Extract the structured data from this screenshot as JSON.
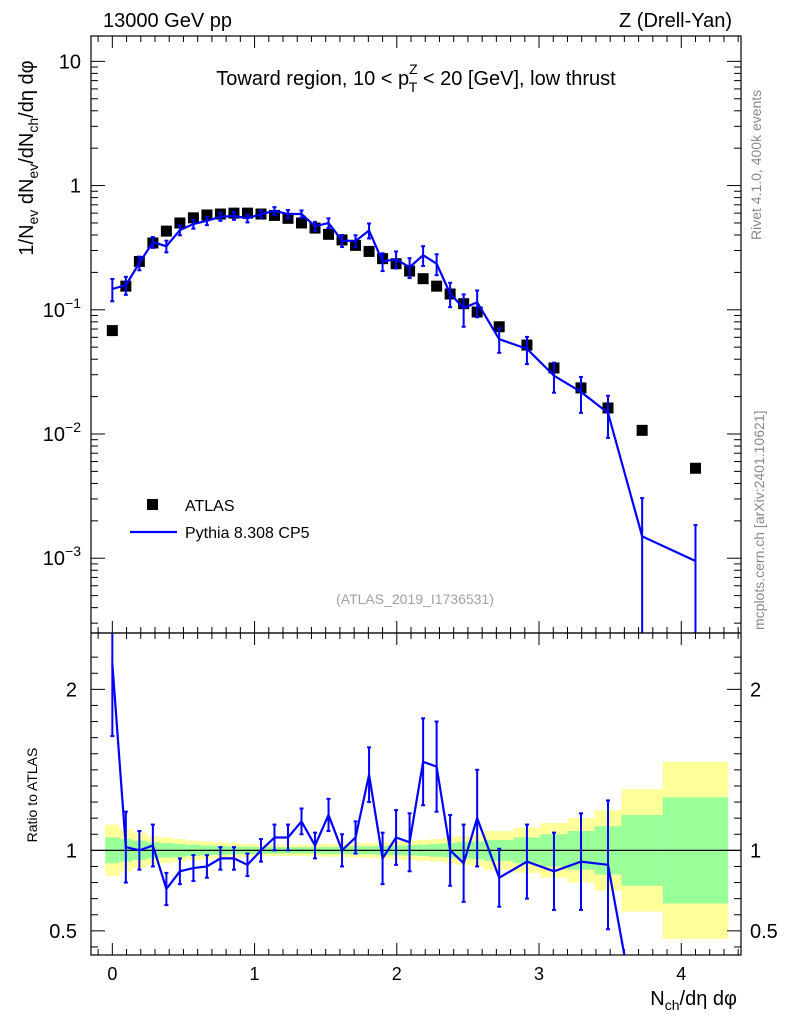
{
  "header": {
    "energy_label": "13000 GeV pp",
    "process_label": "Z (Drell-Yan)"
  },
  "side_labels": {
    "rivet": "Rivet 4.1.0,  400k events",
    "mcplots": "mcplots.cern.ch [arXiv:2401.10621]"
  },
  "watermark": "(ATLAS_2019_I1736531)",
  "colors": {
    "data": "#000000",
    "mc": "#0000ff",
    "band_inner": "#99ff99",
    "band_outer": "#ffff99"
  },
  "chart_data": [
    {
      "type": "scatter",
      "panel": "main",
      "title": "Toward region, 10 < p_T^Z < 20 [GeV], low thrust",
      "title_parts": {
        "pre": "Toward region, 10 < p",
        "sup": "Z",
        "sub": "T",
        "post": " < 20 [GeV], low thrust"
      },
      "xlabel": "N_ch/dη dφ",
      "ylabel": "1/N_ev dN_ev/dN_ch/dη dφ",
      "ylabel_parts": {
        "a": "1/N",
        "a_sub": "ev",
        "b": " dN",
        "b_sub": "ev",
        "c": "/dN",
        "c_sub": "ch",
        "d": "/dη dφ"
      },
      "xlim": [
        -0.15,
        4.42
      ],
      "ylim": [
        0.00025,
        16
      ],
      "yscale": "log",
      "y_ticks": [
        {
          "value": 0.001,
          "base": "10",
          "exp": "−3"
        },
        {
          "value": 0.01,
          "base": "10",
          "exp": "−2"
        },
        {
          "value": 0.1,
          "base": "10",
          "exp": "−1"
        },
        {
          "value": 1,
          "base": "1",
          "exp": ""
        },
        {
          "value": 10,
          "base": "10",
          "exp": ""
        }
      ],
      "legend": {
        "position": "lower-left",
        "entries": [
          {
            "name": "ATLAS",
            "marker": "square"
          },
          {
            "name": "Pythia 8.308 CP5",
            "marker": "line"
          }
        ]
      },
      "series": [
        {
          "name": "ATLAS",
          "x": [
            0.0,
            0.095,
            0.19,
            0.285,
            0.38,
            0.475,
            0.57,
            0.665,
            0.76,
            0.855,
            0.95,
            1.045,
            1.14,
            1.235,
            1.33,
            1.425,
            1.52,
            1.615,
            1.71,
            1.805,
            1.9,
            1.995,
            2.09,
            2.185,
            2.28,
            2.375,
            2.47,
            2.565,
            2.72,
            2.915,
            3.105,
            3.295,
            3.485,
            3.725,
            4.1
          ],
          "y": [
            0.068,
            0.155,
            0.245,
            0.345,
            0.43,
            0.5,
            0.55,
            0.58,
            0.59,
            0.6,
            0.6,
            0.59,
            0.575,
            0.545,
            0.5,
            0.455,
            0.405,
            0.365,
            0.33,
            0.295,
            0.258,
            0.235,
            0.205,
            0.178,
            0.155,
            0.134,
            0.112,
            0.096,
            0.073,
            0.052,
            0.034,
            0.0235,
            0.0162,
            0.0107,
            0.0053
          ]
        },
        {
          "name": "Pythia 8.308 CP5",
          "x": [
            0.0,
            0.095,
            0.19,
            0.285,
            0.38,
            0.475,
            0.57,
            0.665,
            0.76,
            0.855,
            0.95,
            1.045,
            1.14,
            1.235,
            1.33,
            1.425,
            1.52,
            1.615,
            1.71,
            1.805,
            1.9,
            1.995,
            2.09,
            2.185,
            2.28,
            2.375,
            2.47,
            2.565,
            2.72,
            2.915,
            3.105,
            3.295,
            3.485,
            3.725,
            4.1
          ],
          "y": [
            0.147,
            0.158,
            0.238,
            0.35,
            0.325,
            0.438,
            0.49,
            0.52,
            0.56,
            0.57,
            0.545,
            0.59,
            0.625,
            0.59,
            0.59,
            0.47,
            0.5,
            0.36,
            0.358,
            0.435,
            0.245,
            0.255,
            0.22,
            0.275,
            0.235,
            0.135,
            0.103,
            0.115,
            0.058,
            0.0485,
            0.0295,
            0.0218,
            0.0148,
            0.0015,
            0.00095
          ],
          "yerr": [
            0.03,
            0.026,
            0.03,
            0.035,
            0.035,
            0.04,
            0.04,
            0.04,
            0.04,
            0.04,
            0.04,
            0.04,
            0.045,
            0.045,
            0.04,
            0.04,
            0.045,
            0.04,
            0.04,
            0.06,
            0.04,
            0.04,
            0.04,
            0.05,
            0.045,
            0.03,
            0.03,
            0.028,
            0.013,
            0.012,
            0.008,
            0.007,
            0.0055,
            0.00155,
            0.0009
          ]
        }
      ]
    },
    {
      "type": "line",
      "panel": "ratio",
      "xlabel": "N_ch/dη dφ",
      "xlabel_parts": {
        "a": "N",
        "a_sub": "ch",
        "b": "/dη dφ"
      },
      "ylabel": "Ratio to ATLAS",
      "xlim": [
        -0.15,
        4.42
      ],
      "ylim": [
        0.35,
        2.35
      ],
      "x_ticks": [
        "0",
        "1",
        "2",
        "3",
        "4"
      ],
      "y_ticks": [
        "0.5",
        "1",
        "2"
      ],
      "reference_line": 1,
      "bands": {
        "edges": [
          -0.05,
          0.05,
          0.14,
          0.24,
          0.33,
          0.43,
          0.52,
          0.62,
          0.71,
          0.81,
          0.9,
          1.0,
          1.09,
          1.19,
          1.28,
          1.38,
          1.47,
          1.57,
          1.66,
          1.76,
          1.85,
          1.95,
          2.04,
          2.14,
          2.23,
          2.33,
          2.42,
          2.52,
          2.61,
          2.82,
          3.01,
          3.2,
          3.39,
          3.58,
          3.87,
          4.33
        ],
        "inner": [
          0.08,
          0.07,
          0.06,
          0.05,
          0.045,
          0.04,
          0.035,
          0.03,
          0.028,
          0.025,
          0.022,
          0.02,
          0.02,
          0.02,
          0.02,
          0.02,
          0.022,
          0.022,
          0.025,
          0.025,
          0.028,
          0.03,
          0.032,
          0.035,
          0.04,
          0.045,
          0.05,
          0.055,
          0.065,
          0.08,
          0.1,
          0.12,
          0.15,
          0.22,
          0.33
        ],
        "outer": [
          0.16,
          0.13,
          0.11,
          0.09,
          0.08,
          0.07,
          0.06,
          0.055,
          0.05,
          0.045,
          0.04,
          0.035,
          0.035,
          0.035,
          0.035,
          0.035,
          0.04,
          0.04,
          0.045,
          0.045,
          0.05,
          0.055,
          0.06,
          0.065,
          0.07,
          0.08,
          0.09,
          0.1,
          0.12,
          0.14,
          0.17,
          0.2,
          0.25,
          0.38,
          0.55
        ]
      },
      "series": [
        {
          "name": "Pythia 8.308 CP5 / ATLAS",
          "x": [
            0.0,
            0.095,
            0.19,
            0.285,
            0.38,
            0.475,
            0.57,
            0.665,
            0.76,
            0.855,
            0.95,
            1.045,
            1.14,
            1.235,
            1.33,
            1.425,
            1.52,
            1.615,
            1.71,
            1.805,
            1.9,
            1.995,
            2.09,
            2.185,
            2.28,
            2.375,
            2.47,
            2.565,
            2.72,
            2.915,
            3.105,
            3.295,
            3.485,
            3.6
          ],
          "y": [
            2.16,
            1.02,
            1.0,
            1.03,
            0.76,
            0.87,
            0.89,
            0.9,
            0.95,
            0.95,
            0.91,
            1.0,
            1.08,
            1.08,
            1.18,
            1.03,
            1.22,
            1.0,
            1.08,
            1.47,
            0.95,
            1.08,
            1.05,
            1.55,
            1.52,
            1.0,
            0.92,
            1.2,
            0.83,
            0.93,
            0.87,
            0.93,
            0.91,
            0.33
          ],
          "yerr": [
            0.45,
            0.22,
            0.12,
            0.13,
            0.1,
            0.08,
            0.08,
            0.07,
            0.07,
            0.07,
            0.07,
            0.07,
            0.08,
            0.08,
            0.08,
            0.08,
            0.1,
            0.1,
            0.1,
            0.17,
            0.16,
            0.17,
            0.18,
            0.27,
            0.28,
            0.22,
            0.24,
            0.3,
            0.18,
            0.23,
            0.24,
            0.3,
            0.4,
            0.0
          ]
        }
      ]
    }
  ]
}
